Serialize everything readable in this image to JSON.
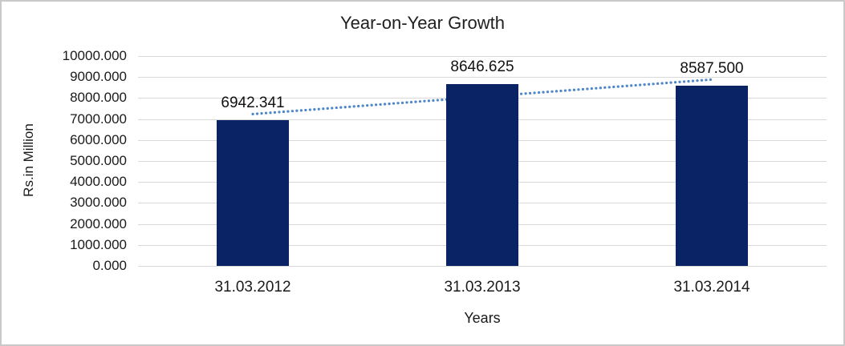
{
  "chart_data": {
    "type": "bar",
    "title": "Year-on-Year Growth",
    "categories": [
      "31.03.2012",
      "31.03.2013",
      "31.03.2014"
    ],
    "values": [
      6942.341,
      8646.625,
      8587.5
    ],
    "data_labels": [
      "6942.341",
      "8646.625",
      "8587.500"
    ],
    "xlabel": "Years",
    "ylabel": "Rs.in Million",
    "ylim": [
      0,
      10000
    ],
    "ytick_step": 1000,
    "ytick_labels": [
      "0.000",
      "1000.000",
      "2000.000",
      "3000.000",
      "4000.000",
      "5000.000",
      "6000.000",
      "7000.000",
      "8000.000",
      "9000.000",
      "10000.000"
    ],
    "grid": true,
    "legend": "none",
    "bar_color": "#0a2364",
    "gridline_color": "#d9d9d9",
    "trendline": {
      "type": "linear",
      "style": "dotted",
      "color": "#4f87c9",
      "endpoint_values": [
        7236.2,
        8881.4
      ]
    }
  }
}
